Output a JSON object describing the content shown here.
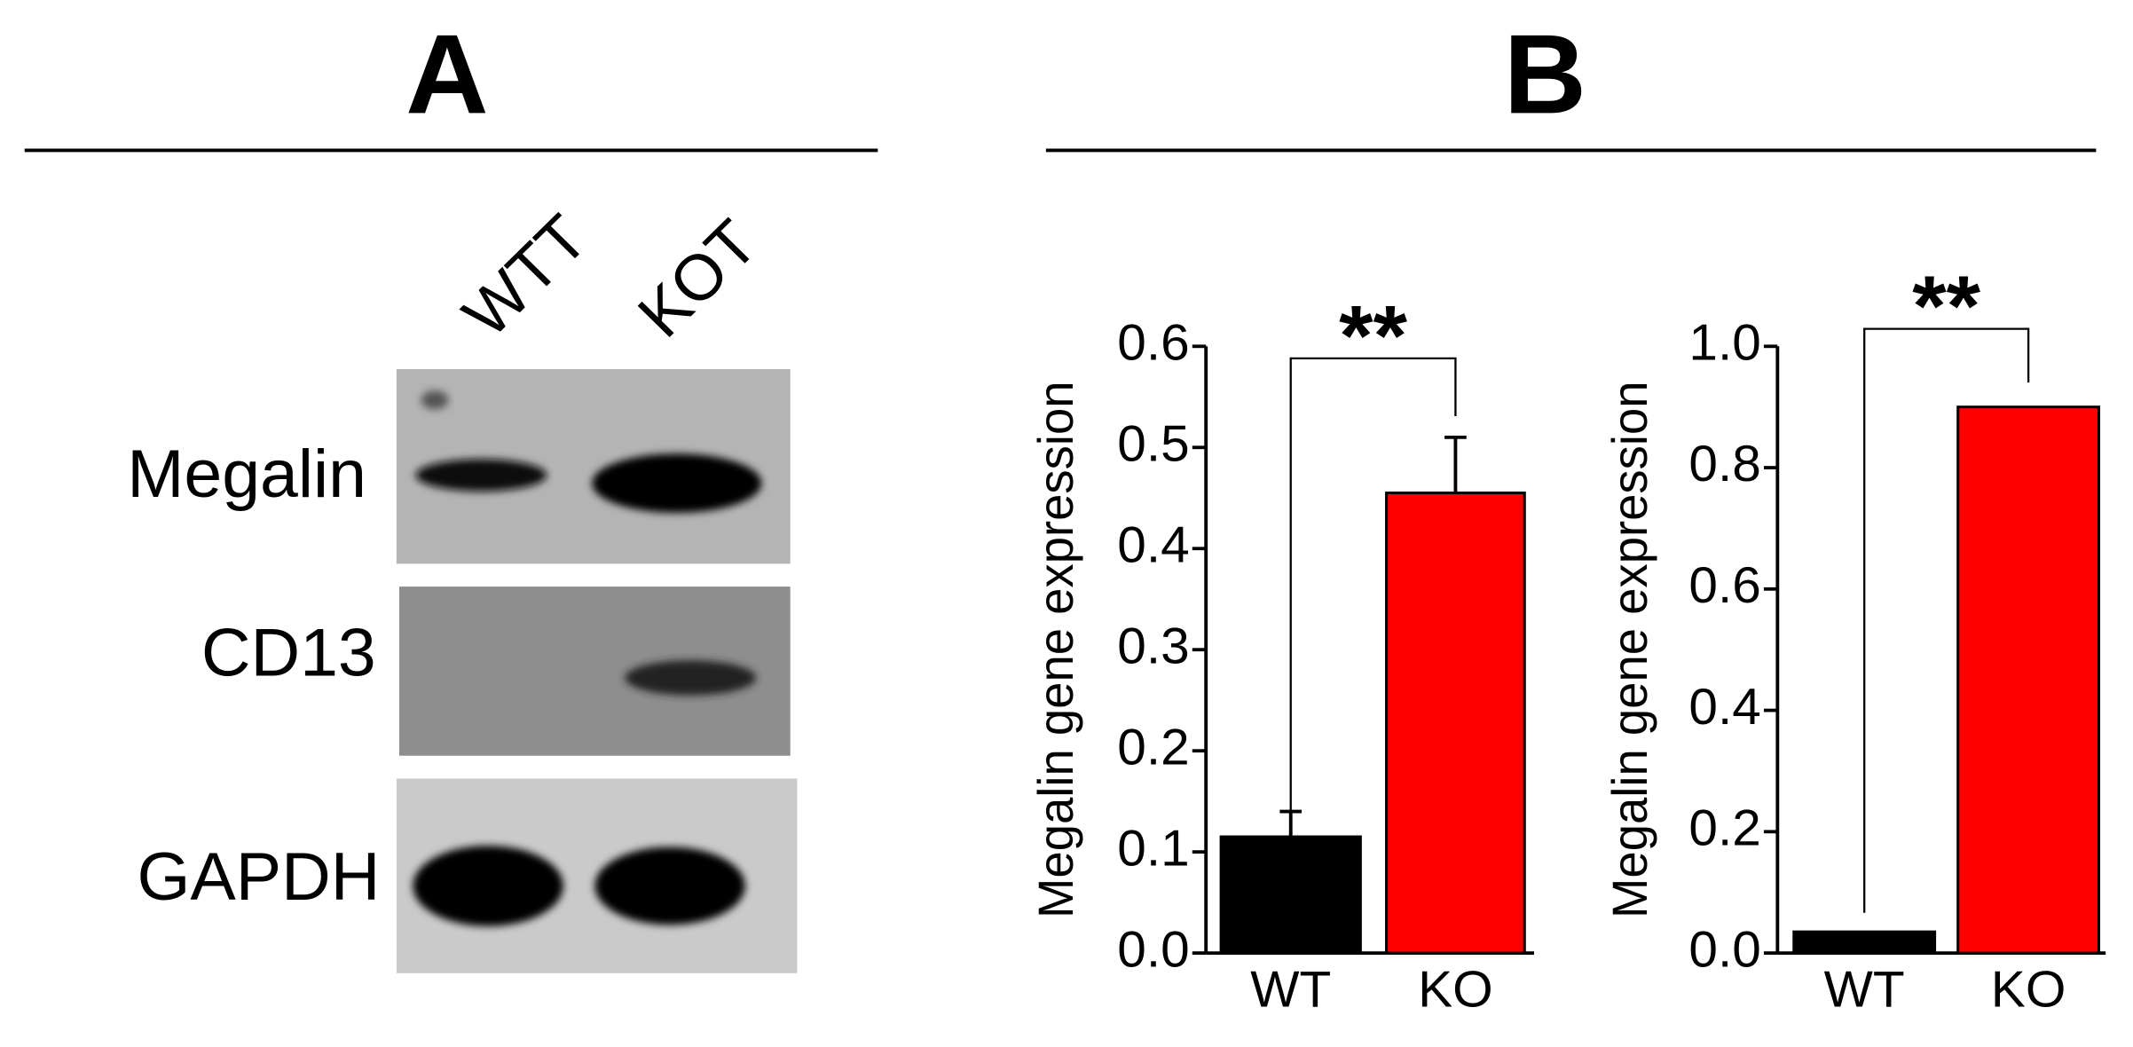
{
  "panel_a": {
    "label": "A",
    "lanes": [
      "WTT",
      "KOT"
    ],
    "rows": [
      "Megalin",
      "CD13",
      "GAPDH"
    ]
  },
  "panel_b": {
    "label": "B"
  },
  "chart_data": [
    {
      "type": "bar",
      "ylabel": "Megalin gene expression",
      "annotation": "**",
      "categories": [
        "WT",
        "KO"
      ],
      "values": [
        0.115,
        0.455
      ],
      "errors": [
        0.025,
        0.055
      ],
      "colors": [
        "#000000",
        "#ff0000"
      ],
      "ylim": [
        0,
        0.6
      ],
      "yticks": [
        {
          "value": 0,
          "label": "0.0"
        },
        0.1,
        0.2,
        0.3,
        0.4,
        0.5,
        0.6
      ]
    },
    {
      "type": "bar",
      "ylabel": "Megalin gene expression",
      "annotation": "**",
      "categories": [
        "WT",
        "KO"
      ],
      "values": [
        0.035,
        0.9
      ],
      "colors": [
        "#000000",
        "#ff0000"
      ],
      "ylim": [
        0,
        1.0
      ],
      "yticks": [
        {
          "value": 0,
          "label": "0.0"
        },
        0.2,
        0.4,
        0.6,
        0.8,
        {
          "value": 1.0,
          "label": "1.0"
        }
      ]
    }
  ]
}
